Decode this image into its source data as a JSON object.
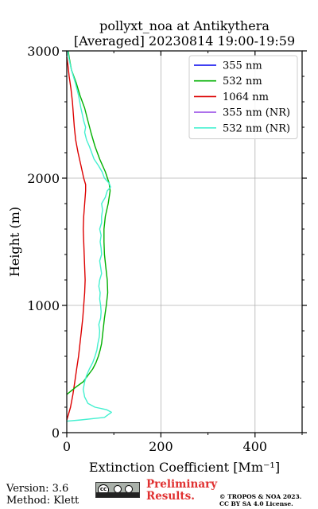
{
  "title_line1": "pollyxt_noa at Antikythera",
  "title_line2": "[Averaged] 20230814 19:00-19:59",
  "footer": {
    "version": "Version: 3.6",
    "method": "Method: Klett",
    "prelim_line1": "Preliminary",
    "prelim_line2": "Results.",
    "copyright_line1": "© TROPOS & NOA 2023.",
    "copyright_line2": "CC BY SA 4.0 License.",
    "license_icon": "cc-by-sa-badge"
  },
  "chart_data": {
    "type": "line",
    "xlabel": "Extinction Coefficient [Mm⁻¹]",
    "ylabel": "Height (m)",
    "xlim": [
      0,
      500
    ],
    "ylim": [
      0,
      3000
    ],
    "xticks": [
      0,
      200,
      400
    ],
    "yticks": [
      0,
      1000,
      2000,
      3000
    ],
    "grid": true,
    "legend_position": "top-right",
    "series": [
      {
        "name": "355 nm",
        "color": "#0000ee",
        "points": []
      },
      {
        "name": "532 nm",
        "color": "#00b000",
        "points": [
          [
            0,
            300
          ],
          [
            10,
            330
          ],
          [
            20,
            360
          ],
          [
            35,
            400
          ],
          [
            45,
            450
          ],
          [
            55,
            500
          ],
          [
            62,
            550
          ],
          [
            67,
            600
          ],
          [
            71,
            650
          ],
          [
            74,
            700
          ],
          [
            77,
            800
          ],
          [
            80,
            900
          ],
          [
            84,
            1000
          ],
          [
            87,
            1100
          ],
          [
            86,
            1200
          ],
          [
            83,
            1300
          ],
          [
            80,
            1400
          ],
          [
            79,
            1500
          ],
          [
            79,
            1600
          ],
          [
            82,
            1700
          ],
          [
            88,
            1800
          ],
          [
            92,
            1900
          ],
          [
            90,
            1960
          ],
          [
            82,
            2050
          ],
          [
            70,
            2150
          ],
          [
            60,
            2250
          ],
          [
            52,
            2350
          ],
          [
            45,
            2450
          ],
          [
            38,
            2550
          ],
          [
            28,
            2650
          ],
          [
            20,
            2750
          ],
          [
            10,
            2850
          ],
          [
            5,
            2950
          ],
          [
            3,
            3000
          ]
        ]
      },
      {
        "name": "1064 nm",
        "color": "#dd0000",
        "points": [
          [
            0,
            100
          ],
          [
            4,
            150
          ],
          [
            8,
            200
          ],
          [
            13,
            300
          ],
          [
            17,
            400
          ],
          [
            21,
            500
          ],
          [
            25,
            600
          ],
          [
            28,
            700
          ],
          [
            31,
            800
          ],
          [
            34,
            900
          ],
          [
            36,
            1000
          ],
          [
            38,
            1100
          ],
          [
            39,
            1200
          ],
          [
            38,
            1300
          ],
          [
            37,
            1400
          ],
          [
            36,
            1500
          ],
          [
            35,
            1600
          ],
          [
            36,
            1700
          ],
          [
            38,
            1800
          ],
          [
            40,
            1900
          ],
          [
            40,
            1950
          ],
          [
            36,
            2000
          ],
          [
            30,
            2100
          ],
          [
            24,
            2200
          ],
          [
            19,
            2300
          ],
          [
            16,
            2400
          ],
          [
            14,
            2500
          ],
          [
            12,
            2600
          ],
          [
            9,
            2700
          ],
          [
            5,
            2800
          ],
          [
            2,
            2900
          ],
          [
            0,
            2950
          ]
        ]
      },
      {
        "name": "355 nm (NR)",
        "color": "#a05ce8",
        "points": []
      },
      {
        "name": "532 nm (NR)",
        "color": "#44f0d0",
        "points": [
          [
            0,
            90
          ],
          [
            30,
            100
          ],
          [
            80,
            120
          ],
          [
            95,
            160
          ],
          [
            85,
            180
          ],
          [
            60,
            200
          ],
          [
            45,
            230
          ],
          [
            38,
            280
          ],
          [
            35,
            340
          ],
          [
            38,
            400
          ],
          [
            42,
            450
          ],
          [
            48,
            500
          ],
          [
            55,
            550
          ],
          [
            60,
            600
          ],
          [
            64,
            650
          ],
          [
            66,
            700
          ],
          [
            69,
            750
          ],
          [
            70,
            800
          ],
          [
            68,
            850
          ],
          [
            72,
            900
          ],
          [
            73,
            950
          ],
          [
            72,
            1000
          ],
          [
            70,
            1050
          ],
          [
            71,
            1100
          ],
          [
            68,
            1150
          ],
          [
            70,
            1200
          ],
          [
            74,
            1250
          ],
          [
            72,
            1300
          ],
          [
            70,
            1350
          ],
          [
            74,
            1400
          ],
          [
            73,
            1450
          ],
          [
            71,
            1500
          ],
          [
            73,
            1550
          ],
          [
            70,
            1600
          ],
          [
            74,
            1650
          ],
          [
            74,
            1700
          ],
          [
            76,
            1750
          ],
          [
            74,
            1800
          ],
          [
            82,
            1850
          ],
          [
            86,
            1900
          ],
          [
            93,
            1930
          ],
          [
            90,
            1960
          ],
          [
            80,
            2000
          ],
          [
            75,
            2050
          ],
          [
            67,
            2100
          ],
          [
            58,
            2150
          ],
          [
            48,
            2250
          ],
          [
            42,
            2300
          ],
          [
            38,
            2360
          ],
          [
            40,
            2400
          ],
          [
            36,
            2450
          ],
          [
            30,
            2550
          ],
          [
            25,
            2650
          ],
          [
            18,
            2750
          ],
          [
            10,
            2850
          ],
          [
            4,
            2950
          ],
          [
            2,
            3000
          ]
        ]
      }
    ]
  }
}
